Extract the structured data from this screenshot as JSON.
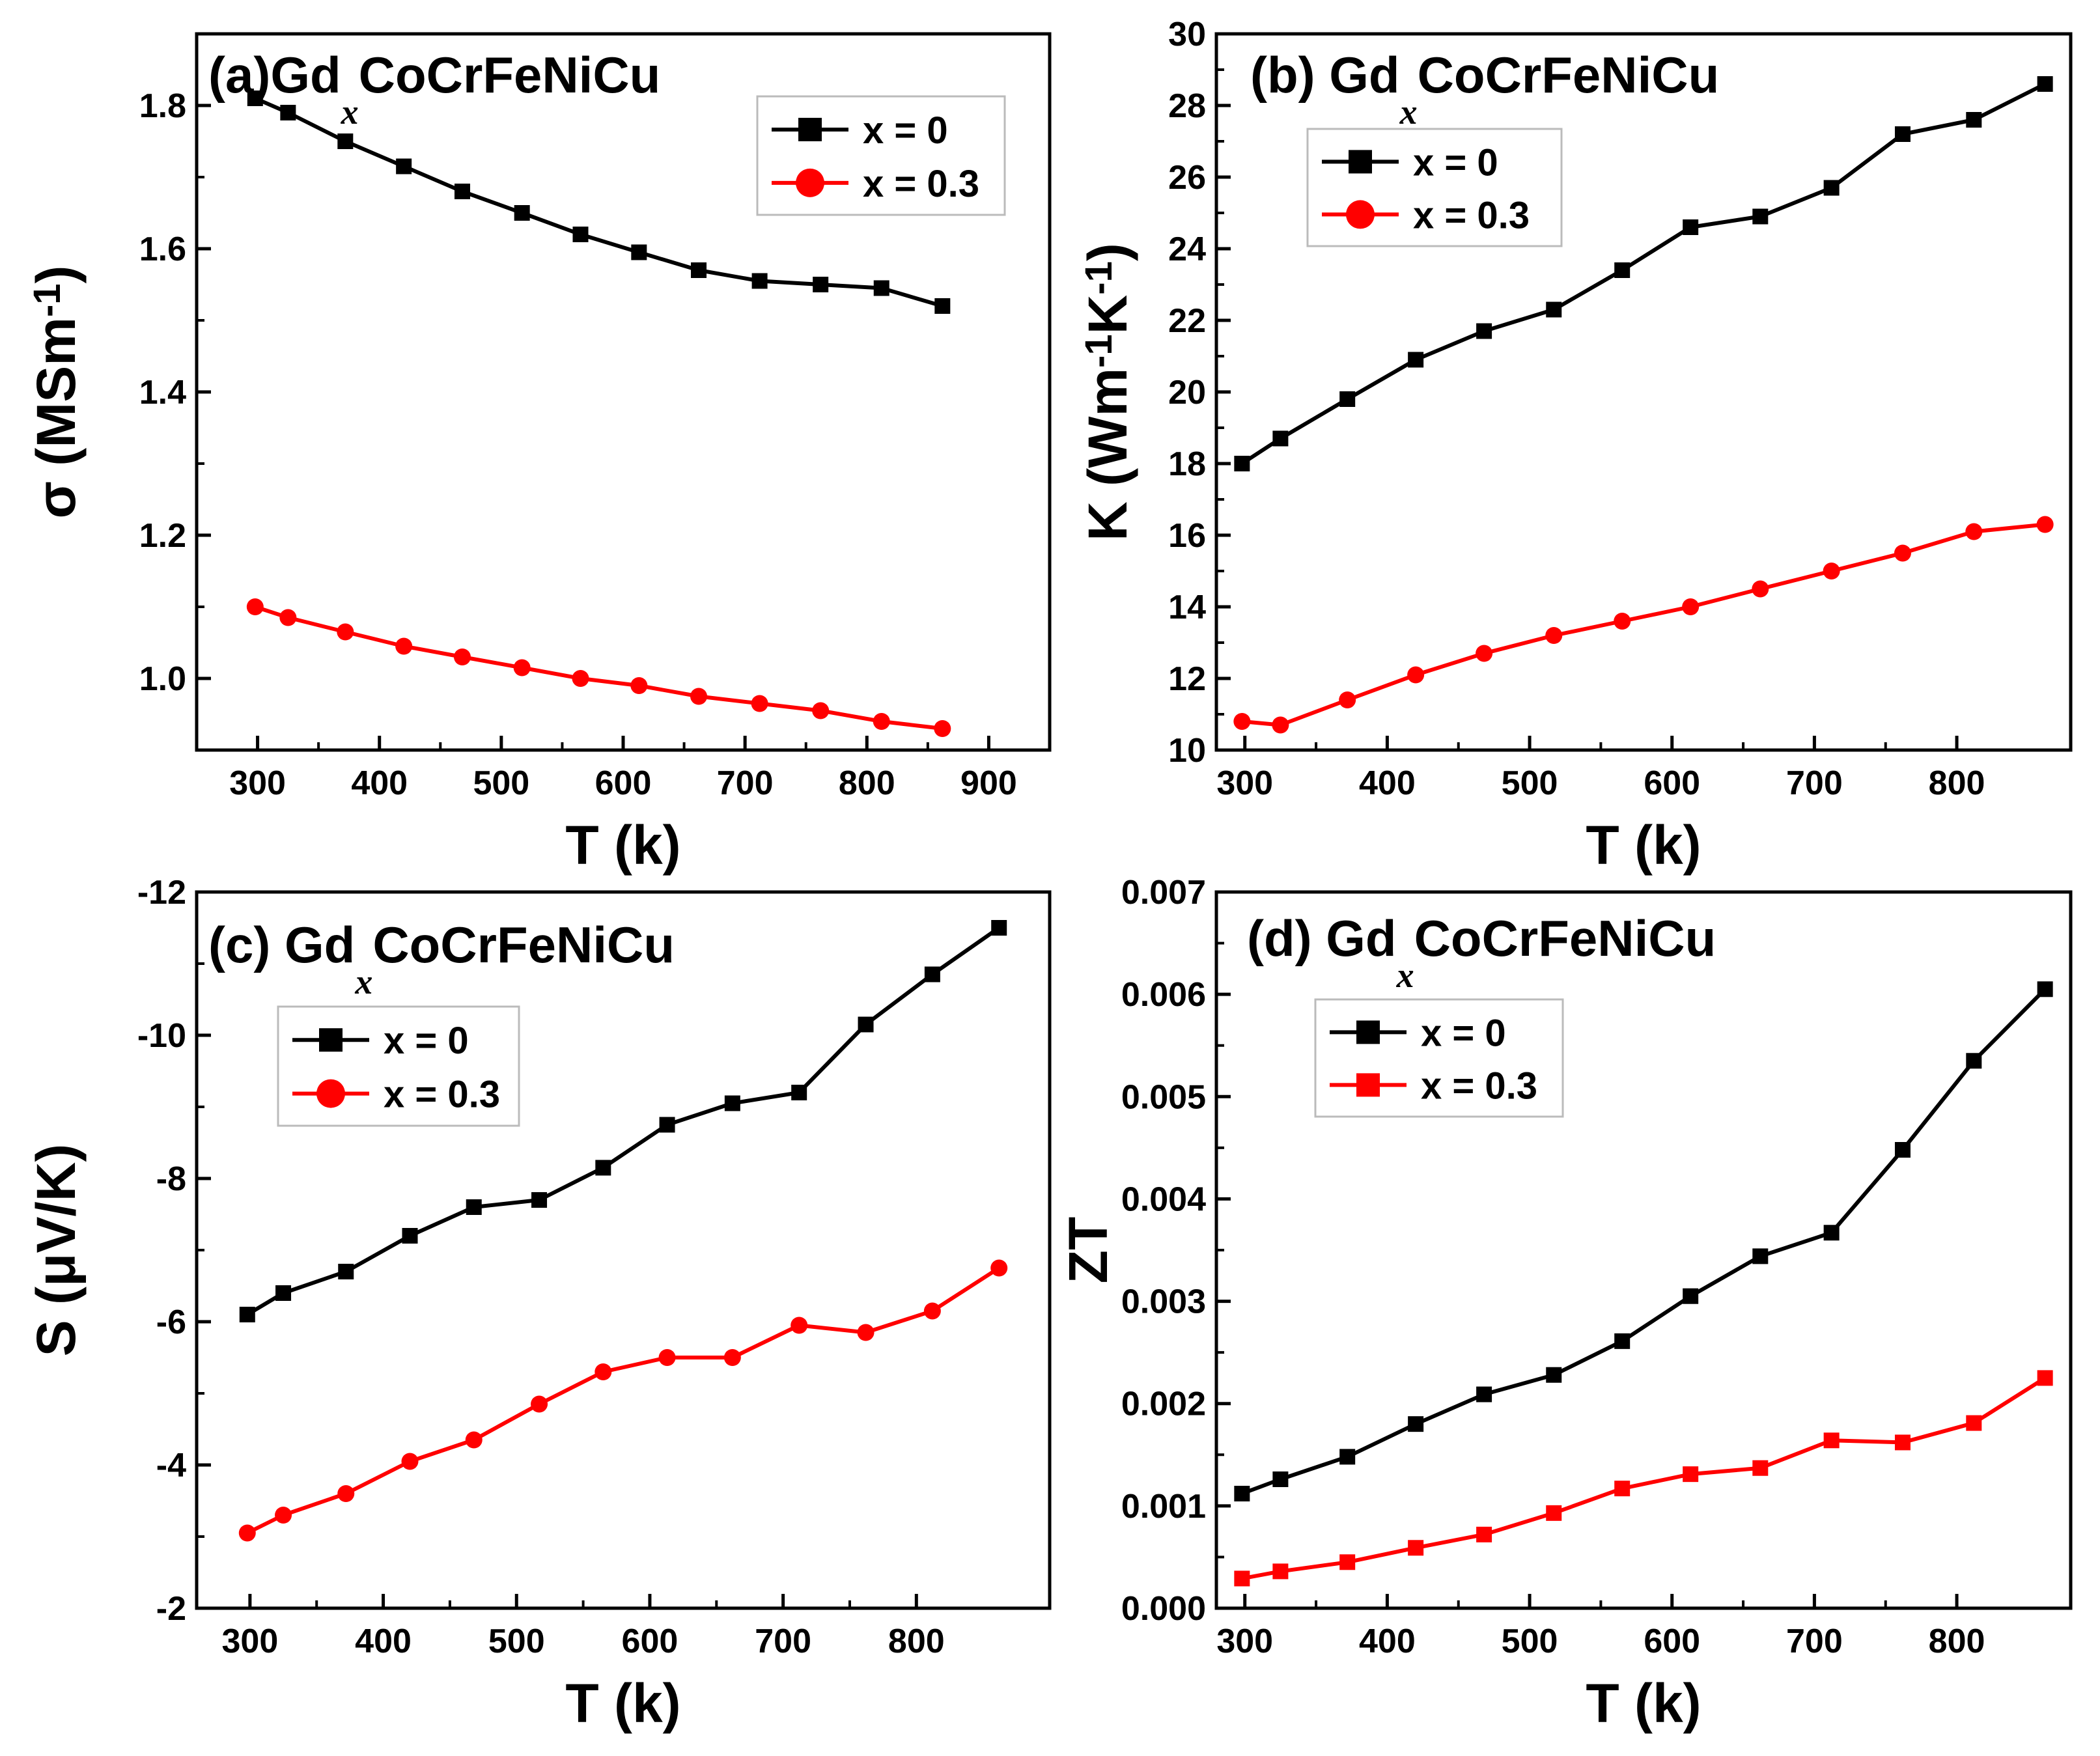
{
  "chart_data": [
    {
      "type": "line",
      "panel": "(a)",
      "title_prefix": "(a)",
      "title_main": "Gd",
      "title_sub": "x",
      "title_rest": "CoCrFeNiCu",
      "xlabel": "T (k)",
      "ylabel_parts": [
        "σ (MSm",
        "-1",
        ")"
      ],
      "xlim": [
        250,
        950
      ],
      "ylim": [
        0.9,
        1.9
      ],
      "xticks": [
        300,
        400,
        500,
        600,
        700,
        800,
        900
      ],
      "yticks": [
        1.0,
        1.2,
        1.4,
        1.6,
        1.8
      ],
      "ytick_labels": [
        "1.0",
        "1.2",
        "1.4",
        "1.6",
        "1.8"
      ],
      "legend_position": "top-right",
      "series": [
        {
          "name": "x = 0",
          "color": "#000000",
          "marker": "square",
          "x": [
            298,
            325,
            372,
            420,
            468,
            517,
            565,
            613,
            662,
            712,
            762,
            812,
            862
          ],
          "y": [
            1.81,
            1.79,
            1.75,
            1.715,
            1.68,
            1.65,
            1.62,
            1.595,
            1.57,
            1.555,
            1.55,
            1.545,
            1.52
          ]
        },
        {
          "name": "x = 0.3",
          "color": "#ff0000",
          "marker": "circle",
          "x": [
            298,
            325,
            372,
            420,
            468,
            517,
            565,
            613,
            662,
            712,
            762,
            812,
            862
          ],
          "y": [
            1.1,
            1.085,
            1.065,
            1.045,
            1.03,
            1.015,
            1.0,
            0.99,
            0.975,
            0.965,
            0.955,
            0.94,
            0.93
          ]
        }
      ]
    },
    {
      "type": "line",
      "panel": "(b)",
      "title_prefix": "(b) ",
      "title_main": "Gd",
      "title_sub": "x",
      "title_rest": "CoCrFeNiCu",
      "xlabel": "T (k)",
      "ylabel_parts": [
        "K (Wm",
        "-1",
        "K",
        "-1",
        ")"
      ],
      "xlim": [
        280,
        880
      ],
      "ylim": [
        10,
        30
      ],
      "xticks": [
        300,
        400,
        500,
        600,
        700,
        800
      ],
      "yticks": [
        10,
        12,
        14,
        16,
        18,
        20,
        22,
        24,
        26,
        28,
        30
      ],
      "ytick_labels": [
        "10",
        "12",
        "14",
        "16",
        "18",
        "20",
        "22",
        "24",
        "26",
        "28",
        "30"
      ],
      "legend_position": "top-left",
      "series": [
        {
          "name": "x = 0",
          "color": "#000000",
          "marker": "square",
          "x": [
            298,
            325,
            372,
            420,
            468,
            517,
            565,
            613,
            662,
            712,
            762,
            812,
            862
          ],
          "y": [
            18.0,
            18.7,
            19.8,
            20.9,
            21.7,
            22.3,
            23.4,
            24.6,
            24.9,
            25.7,
            27.2,
            27.6,
            28.6
          ]
        },
        {
          "name": "x = 0.3",
          "color": "#ff0000",
          "marker": "circle",
          "x": [
            298,
            325,
            372,
            420,
            468,
            517,
            565,
            613,
            662,
            712,
            762,
            812,
            862
          ],
          "y": [
            10.8,
            10.7,
            11.4,
            12.1,
            12.7,
            13.2,
            13.6,
            14.0,
            14.5,
            15.0,
            15.5,
            16.1,
            16.3
          ]
        }
      ]
    },
    {
      "type": "line",
      "panel": "(c)",
      "title_prefix": "(c) ",
      "title_main": "Gd",
      "title_sub": "x",
      "title_rest": "CoCrFeNiCu",
      "xlabel": "T (k)",
      "ylabel_parts": [
        "S (μV/K)"
      ],
      "xlim": [
        260,
        900
      ],
      "ylim": [
        -2,
        -12
      ],
      "xticks": [
        300,
        400,
        500,
        600,
        700,
        800
      ],
      "yticks": [
        -2,
        -4,
        -6,
        -8,
        -10,
        -12
      ],
      "ytick_labels": [
        "-2",
        "-4",
        "-6",
        "-8",
        "-10",
        "-12"
      ],
      "legend_position": "top-left",
      "series": [
        {
          "name": "x = 0",
          "color": "#000000",
          "marker": "square",
          "x": [
            298,
            325,
            372,
            420,
            468,
            517,
            565,
            613,
            662,
            712,
            762,
            812,
            862
          ],
          "y": [
            -6.1,
            -6.4,
            -6.7,
            -7.2,
            -7.6,
            -7.7,
            -8.15,
            -8.75,
            -9.05,
            -9.2,
            -10.15,
            -10.85,
            -11.5
          ]
        },
        {
          "name": "x = 0.3",
          "color": "#ff0000",
          "marker": "circle",
          "x": [
            298,
            325,
            372,
            420,
            468,
            517,
            565,
            613,
            662,
            712,
            762,
            812,
            862
          ],
          "y": [
            -3.05,
            -3.3,
            -3.6,
            -4.05,
            -4.35,
            -4.85,
            -5.3,
            -5.5,
            -5.5,
            -5.95,
            -5.85,
            -6.15,
            -6.75
          ]
        }
      ]
    },
    {
      "type": "line",
      "panel": "(d)",
      "title_prefix": "(d) ",
      "title_main": "Gd",
      "title_sub": "x",
      "title_rest": "CoCrFeNiCu",
      "xlabel": "T (k)",
      "ylabel_parts": [
        "ZT"
      ],
      "xlim": [
        280,
        880
      ],
      "ylim": [
        0.0,
        0.007
      ],
      "xticks": [
        300,
        400,
        500,
        600,
        700,
        800
      ],
      "yticks": [
        0.0,
        0.001,
        0.002,
        0.003,
        0.004,
        0.005,
        0.006,
        0.007
      ],
      "ytick_labels": [
        "0.000",
        "0.001",
        "0.002",
        "0.003",
        "0.004",
        "0.005",
        "0.006",
        "0.007"
      ],
      "legend_position": "top-left",
      "series": [
        {
          "name": "x = 0",
          "color": "#000000",
          "marker": "square",
          "x": [
            298,
            325,
            372,
            420,
            468,
            517,
            565,
            613,
            662,
            712,
            762,
            812,
            862
          ],
          "y": [
            0.00112,
            0.00126,
            0.00148,
            0.0018,
            0.00209,
            0.00228,
            0.00261,
            0.00305,
            0.00344,
            0.00367,
            0.00448,
            0.00535,
            0.00605
          ]
        },
        {
          "name": "x = 0.3",
          "color": "#ff0000",
          "marker": "square",
          "x": [
            298,
            325,
            372,
            420,
            468,
            517,
            565,
            613,
            662,
            712,
            762,
            812,
            862
          ],
          "y": [
            0.00029,
            0.00036,
            0.00045,
            0.00059,
            0.00072,
            0.00093,
            0.00117,
            0.00131,
            0.00137,
            0.00164,
            0.00162,
            0.00181,
            0.00225
          ]
        }
      ]
    }
  ]
}
